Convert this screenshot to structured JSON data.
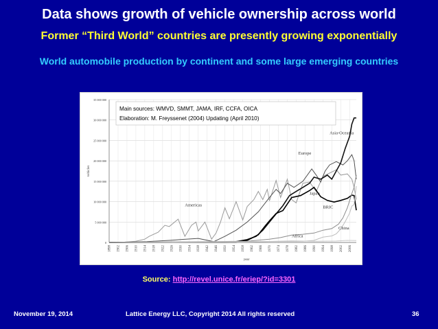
{
  "slide": {
    "title": "Data shows growth of vehicle ownership across world",
    "subtitle": "Former “Third World” countries are presently growing exponentially",
    "chart_heading": "World automobile production by continent and some large emerging countries",
    "source_label": "Source:",
    "source_url": "http://revel.unice.fr/eriep/?id=3301",
    "footer_date": "November 19, 2014",
    "footer_copyright": "Lattice Energy LLC, Copyright 2014   All rights reserved",
    "page_number": "36"
  },
  "colors": {
    "background": "#000099",
    "title": "#ffffff",
    "subtitle": "#ffff33",
    "heading": "#33ccff",
    "source_link": "#ff66ff"
  },
  "chart_data": {
    "type": "line",
    "annotation_line1": "Main sources: WMVD, SMMT, JAMA, IRF, CCFA, OICA",
    "annotation_line2": "Elaboration: M. Freyssenet (2004) Updating (April 2010)",
    "ylabel": "vehicles",
    "xlabel": "year",
    "ylim": [
      0,
      35000000
    ],
    "xlim": [
      1898,
      2009
    ],
    "y_ticks": [
      "0",
      "5 000 000",
      "10 000 000",
      "15 000 000",
      "20 000 000",
      "25 000 000",
      "30 000 000",
      "35 000 000"
    ],
    "x_ticks": [
      "1898",
      "1902",
      "1906",
      "1910",
      "1914",
      "1918",
      "1922",
      "1926",
      "1930",
      "1934",
      "1938",
      "1942",
      "1946",
      "1950",
      "1954",
      "1958",
      "1962",
      "1966",
      "1970",
      "1974",
      "1978",
      "1982",
      "1986",
      "1990",
      "1994",
      "1998",
      "2002",
      "2006"
    ],
    "grid": true,
    "series": [
      {
        "name": "Americas",
        "color": "#9a9a9a",
        "points": [
          [
            1898,
            0
          ],
          [
            1905,
            100000
          ],
          [
            1910,
            300000
          ],
          [
            1914,
            800000
          ],
          [
            1916,
            1500000
          ],
          [
            1920,
            2500000
          ],
          [
            1923,
            4200000
          ],
          [
            1925,
            3900000
          ],
          [
            1929,
            5700000
          ],
          [
            1932,
            1500000
          ],
          [
            1935,
            4200000
          ],
          [
            1937,
            5000000
          ],
          [
            1938,
            2800000
          ],
          [
            1941,
            5000000
          ],
          [
            1944,
            800000
          ],
          [
            1946,
            2300000
          ],
          [
            1948,
            5000000
          ],
          [
            1950,
            8500000
          ],
          [
            1952,
            5800000
          ],
          [
            1955,
            10000000
          ],
          [
            1958,
            5500000
          ],
          [
            1960,
            8800000
          ],
          [
            1963,
            10500000
          ],
          [
            1965,
            12500000
          ],
          [
            1967,
            10500000
          ],
          [
            1969,
            13000000
          ],
          [
            1970,
            10200000
          ],
          [
            1973,
            15200000
          ],
          [
            1975,
            11000000
          ],
          [
            1978,
            15500000
          ],
          [
            1980,
            10500000
          ],
          [
            1982,
            9700000
          ],
          [
            1985,
            14500000
          ],
          [
            1988,
            14800000
          ],
          [
            1991,
            12500000
          ],
          [
            1994,
            16200000
          ],
          [
            1997,
            17000000
          ],
          [
            2000,
            17800000
          ],
          [
            2002,
            16500000
          ],
          [
            2005,
            16800000
          ],
          [
            2007,
            15500000
          ],
          [
            2008,
            13500000
          ],
          [
            2009,
            10500000
          ]
        ]
      },
      {
        "name": "Europe",
        "color": "#505050",
        "points": [
          [
            1898,
            0
          ],
          [
            1915,
            200000
          ],
          [
            1925,
            500000
          ],
          [
            1930,
            700000
          ],
          [
            1938,
            1000000
          ],
          [
            1945,
            200000
          ],
          [
            1950,
            1500000
          ],
          [
            1955,
            3000000
          ],
          [
            1960,
            5000000
          ],
          [
            1965,
            7500000
          ],
          [
            1970,
            11000000
          ],
          [
            1973,
            13000000
          ],
          [
            1975,
            12000000
          ],
          [
            1978,
            14500000
          ],
          [
            1981,
            13500000
          ],
          [
            1985,
            15000000
          ],
          [
            1989,
            18000000
          ],
          [
            1991,
            16500000
          ],
          [
            1993,
            14800000
          ],
          [
            1995,
            17500000
          ],
          [
            1997,
            19000000
          ],
          [
            2000,
            19800000
          ],
          [
            2003,
            19000000
          ],
          [
            2005,
            20000000
          ],
          [
            2007,
            21500000
          ],
          [
            2008,
            20000000
          ],
          [
            2009,
            15500000
          ]
        ]
      },
      {
        "name": "Asia-Oceania",
        "color": "#111111",
        "points": [
          [
            1898,
            0
          ],
          [
            1950,
            100000
          ],
          [
            1955,
            200000
          ],
          [
            1960,
            700000
          ],
          [
            1964,
            1500000
          ],
          [
            1967,
            3000000
          ],
          [
            1970,
            5000000
          ],
          [
            1973,
            7000000
          ],
          [
            1976,
            9000000
          ],
          [
            1979,
            11500000
          ],
          [
            1982,
            12500000
          ],
          [
            1985,
            13500000
          ],
          [
            1988,
            14500000
          ],
          [
            1990,
            16000000
          ],
          [
            1993,
            15500000
          ],
          [
            1996,
            16500000
          ],
          [
            1998,
            15500000
          ],
          [
            2000,
            17500000
          ],
          [
            2002,
            19500000
          ],
          [
            2004,
            23000000
          ],
          [
            2006,
            26000000
          ],
          [
            2007,
            29000000
          ],
          [
            2008,
            30500000
          ],
          [
            2009,
            30500000
          ]
        ]
      },
      {
        "name": "Japan",
        "color": "#000000",
        "points": [
          [
            1898,
            0
          ],
          [
            1955,
            100000
          ],
          [
            1960,
            500000
          ],
          [
            1965,
            1900000
          ],
          [
            1968,
            4000000
          ],
          [
            1970,
            5300000
          ],
          [
            1973,
            7100000
          ],
          [
            1976,
            7800000
          ],
          [
            1980,
            11000000
          ],
          [
            1984,
            11500000
          ],
          [
            1988,
            12700000
          ],
          [
            1990,
            13500000
          ],
          [
            1993,
            11200000
          ],
          [
            1996,
            10300000
          ],
          [
            1999,
            9900000
          ],
          [
            2002,
            10300000
          ],
          [
            2005,
            10800000
          ],
          [
            2007,
            11600000
          ],
          [
            2008,
            11500000
          ],
          [
            2009,
            7900000
          ]
        ]
      },
      {
        "name": "BRIC",
        "color": "#8a8a8a",
        "points": [
          [
            1898,
            0
          ],
          [
            1960,
            300000
          ],
          [
            1970,
            800000
          ],
          [
            1975,
            1200000
          ],
          [
            1980,
            1800000
          ],
          [
            1985,
            2000000
          ],
          [
            1990,
            2300000
          ],
          [
            1994,
            3000000
          ],
          [
            1998,
            3400000
          ],
          [
            2001,
            4500000
          ],
          [
            2003,
            6000000
          ],
          [
            2005,
            8500000
          ],
          [
            2007,
            12000000
          ],
          [
            2008,
            13500000
          ],
          [
            2009,
            16500000
          ]
        ]
      },
      {
        "name": "China",
        "color": "#bdbdbd",
        "points": [
          [
            1898,
            0
          ],
          [
            1985,
            300000
          ],
          [
            1990,
            500000
          ],
          [
            1994,
            1300000
          ],
          [
            1998,
            1600000
          ],
          [
            2000,
            2100000
          ],
          [
            2002,
            3300000
          ],
          [
            2004,
            5100000
          ],
          [
            2006,
            7200000
          ],
          [
            2007,
            8900000
          ],
          [
            2008,
            9300000
          ],
          [
            2009,
            13800000
          ]
        ]
      },
      {
        "name": "Africa",
        "color": "#c8c8c8",
        "points": [
          [
            1898,
            0
          ],
          [
            1960,
            100000
          ],
          [
            1970,
            250000
          ],
          [
            1980,
            400000
          ],
          [
            1990,
            300000
          ],
          [
            2000,
            350000
          ],
          [
            2005,
            500000
          ],
          [
            2009,
            450000
          ]
        ]
      }
    ]
  }
}
